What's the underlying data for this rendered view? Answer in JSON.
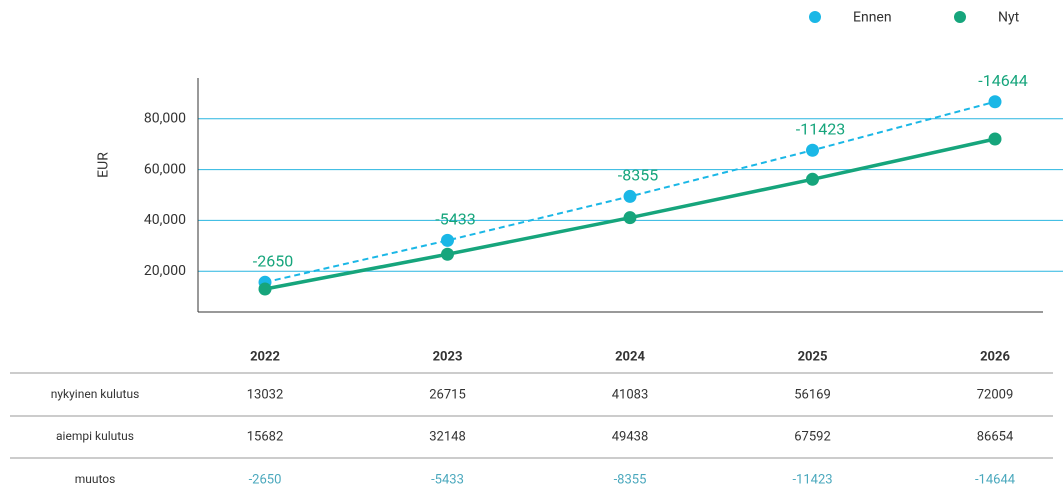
{
  "chart_data": {
    "type": "line",
    "categories": [
      "2022",
      "2023",
      "2024",
      "2025",
      "2026"
    ],
    "series": [
      {
        "name": "Ennen",
        "color": "#1ab7e6",
        "dashed": true,
        "values": [
          15682,
          32148,
          49438,
          67592,
          86654
        ]
      },
      {
        "name": "Nyt",
        "color": "#16a57c",
        "dashed": false,
        "values": [
          13032,
          26715,
          41083,
          56169,
          72009
        ]
      }
    ],
    "annotations": [
      -2650,
      -5433,
      -8355,
      -11423,
      -14644
    ],
    "annotation_color": "#16a57c",
    "ylabel": "EUR",
    "ylim": [
      4000,
      96000
    ],
    "yticks": [
      {
        "value": 20000,
        "label": "20,000"
      },
      {
        "value": 40000,
        "label": "40,000"
      },
      {
        "value": 60000,
        "label": "60,000"
      },
      {
        "value": 80000,
        "label": "80,000"
      }
    ],
    "grid": true,
    "legend": "top-right"
  },
  "table": {
    "rows": [
      "nykyinen kulutus",
      "aiempi kulutus",
      "muutos"
    ]
  }
}
